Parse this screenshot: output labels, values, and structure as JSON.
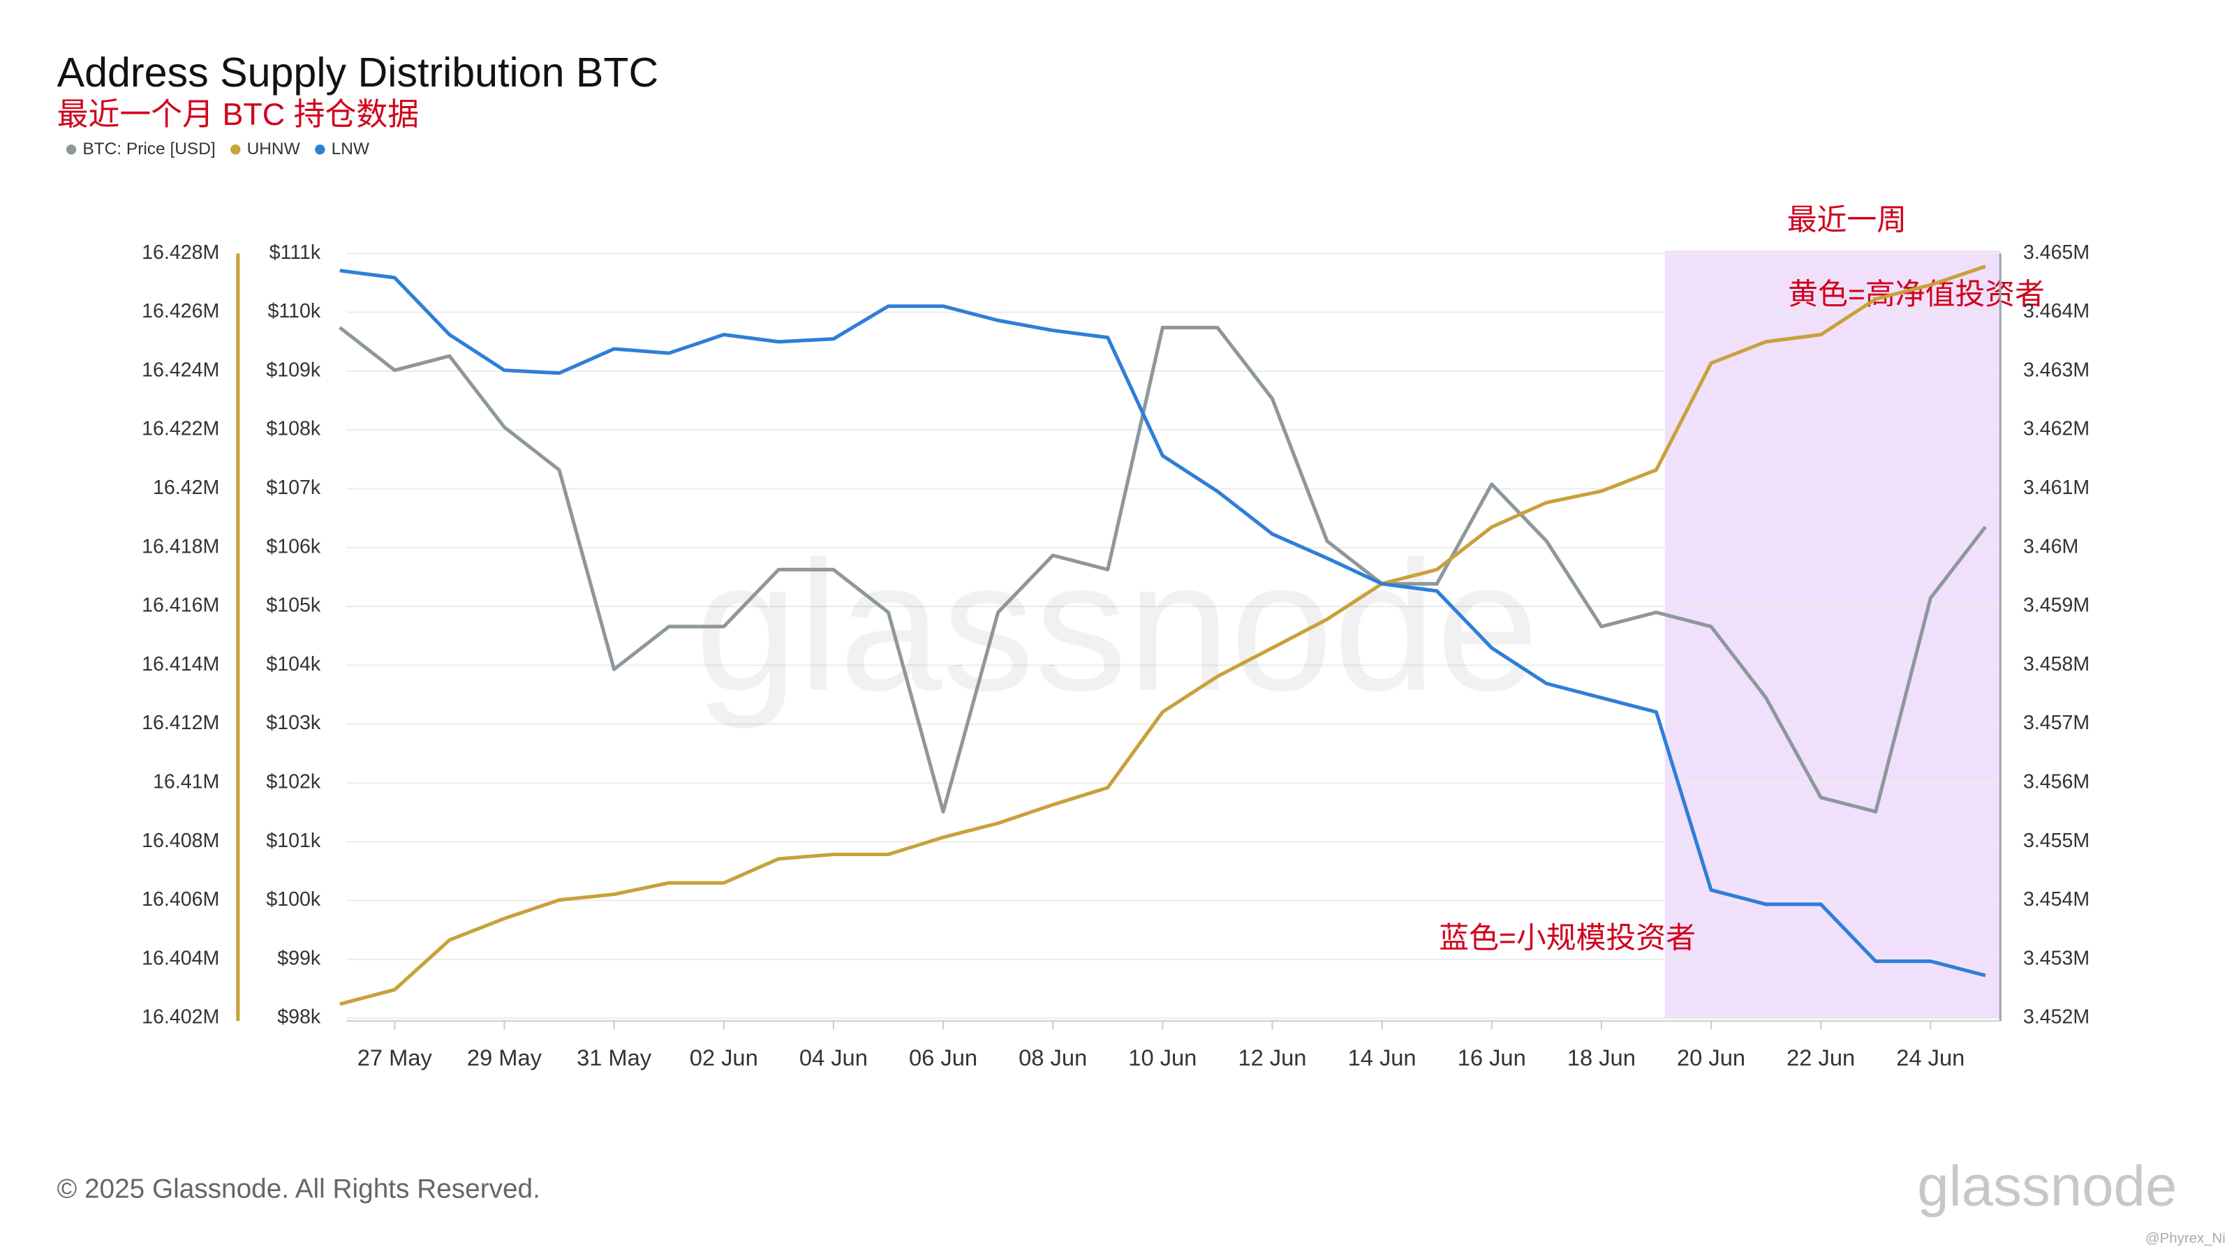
{
  "chart_data": {
    "type": "line",
    "title": "Address Supply Distribution BTC",
    "subtitle": "最近一个月 BTC 持仓数据",
    "x": [
      "26 May",
      "27 May",
      "28 May",
      "29 May",
      "30 May",
      "31 May",
      "01 Jun",
      "02 Jun",
      "03 Jun",
      "04 Jun",
      "05 Jun",
      "06 Jun",
      "07 Jun",
      "08 Jun",
      "09 Jun",
      "10 Jun",
      "11 Jun",
      "12 Jun",
      "13 Jun",
      "14 Jun",
      "15 Jun",
      "16 Jun",
      "17 Jun",
      "18 Jun",
      "19 Jun",
      "20 Jun",
      "21 Jun",
      "22 Jun",
      "23 Jun",
      "24 Jun",
      "25 Jun"
    ],
    "xticks": [
      "27 May",
      "29 May",
      "31 May",
      "02 Jun",
      "04 Jun",
      "06 Jun",
      "08 Jun",
      "10 Jun",
      "12 Jun",
      "14 Jun",
      "16 Jun",
      "18 Jun",
      "20 Jun",
      "22 Jun",
      "24 Jun"
    ],
    "ylim": [
      16402000,
      16428000
    ],
    "yticks": [
      {
        "value": 16402000,
        "label": "16.402M"
      },
      {
        "value": 16404000,
        "label": "16.404M"
      },
      {
        "value": 16406000,
        "label": "16.406M"
      },
      {
        "value": 16408000,
        "label": "16.408M"
      },
      {
        "value": 16410000,
        "label": "16.41M"
      },
      {
        "value": 16412000,
        "label": "16.412M"
      },
      {
        "value": 16414000,
        "label": "16.414M"
      },
      {
        "value": 16416000,
        "label": "16.416M"
      },
      {
        "value": 16418000,
        "label": "16.418M"
      },
      {
        "value": 16420000,
        "label": "16.42M"
      },
      {
        "value": 16422000,
        "label": "16.422M"
      },
      {
        "value": 16424000,
        "label": "16.424M"
      },
      {
        "value": 16426000,
        "label": "16.426M"
      },
      {
        "value": 16428000,
        "label": "16.428M"
      }
    ],
    "y3lim": [
      98000,
      111000
    ],
    "y3ticks": [
      {
        "value": 98000,
        "label": "$98k"
      },
      {
        "value": 99000,
        "label": "$99k"
      },
      {
        "value": 100000,
        "label": "$100k"
      },
      {
        "value": 101000,
        "label": "$101k"
      },
      {
        "value": 102000,
        "label": "$102k"
      },
      {
        "value": 103000,
        "label": "$103k"
      },
      {
        "value": 104000,
        "label": "$104k"
      },
      {
        "value": 105000,
        "label": "$105k"
      },
      {
        "value": 106000,
        "label": "$106k"
      },
      {
        "value": 107000,
        "label": "$107k"
      },
      {
        "value": 108000,
        "label": "$108k"
      },
      {
        "value": 109000,
        "label": "$109k"
      },
      {
        "value": 110000,
        "label": "$110k"
      },
      {
        "value": 111000,
        "label": "$111k"
      }
    ],
    "y2lim": [
      3452000,
      3465000
    ],
    "y2ticks": [
      {
        "value": 3452000,
        "label": "3.452M"
      },
      {
        "value": 3453000,
        "label": "3.453M"
      },
      {
        "value": 3454000,
        "label": "3.454M"
      },
      {
        "value": 3455000,
        "label": "3.455M"
      },
      {
        "value": 3456000,
        "label": "3.456M"
      },
      {
        "value": 3457000,
        "label": "3.457M"
      },
      {
        "value": 3458000,
        "label": "3.458M"
      },
      {
        "value": 3459000,
        "label": "3.459M"
      },
      {
        "value": 3460000,
        "label": "3.46M"
      },
      {
        "value": 3461000,
        "label": "3.461M"
      },
      {
        "value": 3462000,
        "label": "3.462M"
      },
      {
        "value": 3463000,
        "label": "3.463M"
      },
      {
        "value": 3464000,
        "label": "3.464M"
      },
      {
        "value": 3465000,
        "label": "3.465M"
      }
    ],
    "grid": true,
    "series": [
      {
        "name": "BTC: Price [USD]",
        "color": "#8e979b",
        "axis": "y3",
        "values": [
          109741,
          109015,
          109257,
          108047,
          107320,
          103931,
          104657,
          104657,
          105625,
          105625,
          104899,
          101510,
          104899,
          105867,
          105625,
          109741,
          109741,
          108531,
          106110,
          105384,
          105384,
          107078,
          106110,
          104657,
          104899,
          104657,
          103447,
          101752,
          101510,
          105141,
          106352
        ]
      },
      {
        "name": "UHNW",
        "color": "#c9a13a",
        "axis": "y",
        "values": [
          16402480,
          16402970,
          16404660,
          16405390,
          16406020,
          16406210,
          16406600,
          16406600,
          16407420,
          16407570,
          16407570,
          16408150,
          16408630,
          16409260,
          16409840,
          16412410,
          16413620,
          16414590,
          16415560,
          16416770,
          16417250,
          16418700,
          16419530,
          16419920,
          16420640,
          16424270,
          16425000,
          16425240,
          16426450,
          16426930,
          16427560
        ]
      },
      {
        "name": "LNW",
        "color": "#2f7ed8",
        "axis": "y2",
        "values": [
          3464709,
          3464588,
          3463620,
          3463015,
          3462966,
          3463378,
          3463305,
          3463620,
          3463499,
          3463547,
          3464104,
          3464104,
          3463862,
          3463693,
          3463571,
          3461562,
          3460957,
          3460231,
          3459819,
          3459384,
          3459262,
          3458294,
          3457689,
          3457447,
          3457205,
          3454179,
          3453937,
          3453937,
          3452968,
          3452968,
          3452726
        ]
      }
    ],
    "highlight": {
      "label": "最近一周",
      "from": "19 Jun"
    },
    "annotations": [
      "黄色=高净值投资者",
      "蓝色=小规模投资者"
    ],
    "watermark": "glassnode",
    "footer": "© 2025 Glassnode. All Rights Reserved.",
    "logo": "glassnode",
    "credit": "@Phyrex_Ni"
  }
}
